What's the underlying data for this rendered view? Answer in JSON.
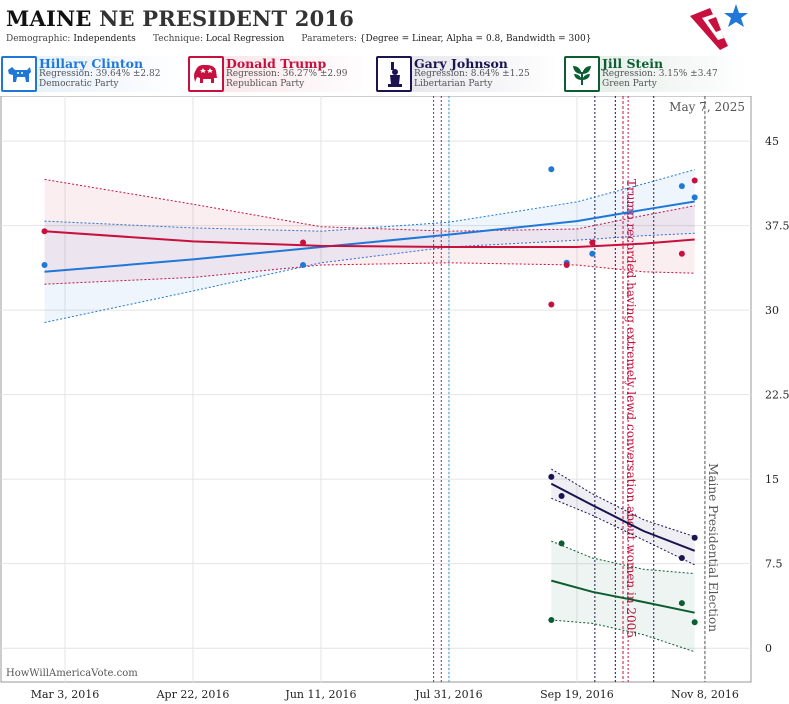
{
  "header": {
    "title_state": "MAINE",
    "title_rest": "NE PRESIDENT 2016",
    "demographic_label": "Demographic:",
    "demographic_value": "Independents",
    "technique_label": "Technique:",
    "technique_value": "Local Regression",
    "parameters_label": "Parameters:",
    "parameters_value": "{Degree = Linear, Alpha = 0.8, Bandwidth = 300}"
  },
  "candidates": [
    {
      "name": "Hillary Clinton",
      "regression": "Regression: 39.64% ±2.82",
      "party": "Democratic Party",
      "color": "#1f78d8",
      "icon": "donkey-icon"
    },
    {
      "name": "Donald Trump",
      "regression": "Regression: 36.27% ±2.99",
      "party": "Republican Party",
      "color": "#c8103e",
      "icon": "elephant-icon"
    },
    {
      "name": "Gary Johnson",
      "regression": "Regression: 8.64% ±1.25",
      "party": "Libertarian Party",
      "color": "#1a1450",
      "icon": "liberty-statue-icon"
    },
    {
      "name": "Jill Stein",
      "regression": "Regression: 3.15% ±3.47",
      "party": "Green Party",
      "color": "#0c5e32",
      "icon": "green-leaf-icon"
    }
  ],
  "footer": "HowWillAmericaVote.com",
  "chart_data": {
    "type": "line",
    "date_label": "May 7, 2025",
    "x_ticks": [
      "Mar 3, 2016",
      "Apr 22, 2016",
      "Jun 11, 2016",
      "Jul 31, 2016",
      "Sep 19, 2016",
      "Nov 8, 2016"
    ],
    "y_ticks": [
      0,
      7.5,
      15,
      22.5,
      30,
      37.5,
      45
    ],
    "ylim": [
      -3,
      49
    ],
    "xlim": [
      "2016-02-07",
      "2016-11-26"
    ],
    "annotations": [
      {
        "date": "2016-10-07",
        "text": "Trump recorded having extremely lewd conversation about women in 2005",
        "color": "#c8103e"
      },
      {
        "date": "2016-11-08",
        "text": "Maine Presidential Election",
        "color": "#555555"
      }
    ],
    "event_lines": [
      {
        "date": "2016-07-25",
        "color": "#c8103e"
      },
      {
        "date": "2016-07-28",
        "color": "#c8103e"
      },
      {
        "date": "2016-07-31",
        "color": "#2aa0c8"
      },
      {
        "date": "2016-09-26",
        "color": "#1a1450"
      },
      {
        "date": "2016-10-04",
        "color": "#1a1450"
      },
      {
        "date": "2016-10-09",
        "color": "#c8103e"
      },
      {
        "date": "2016-10-19",
        "color": "#1a1450"
      }
    ],
    "series": [
      {
        "name": "Hillary Clinton",
        "color": "#1f78d8",
        "points": [
          [
            "2016-02-24",
            34.0
          ],
          [
            "2016-06-04",
            34.0
          ],
          [
            "2016-09-09",
            42.5
          ],
          [
            "2016-09-15",
            34.2
          ],
          [
            "2016-09-25",
            35.0
          ],
          [
            "2016-10-30",
            41.0
          ],
          [
            "2016-11-04",
            40.0
          ]
        ],
        "fit": [
          [
            "2016-02-24",
            33.4
          ],
          [
            "2016-04-22",
            34.5
          ],
          [
            "2016-06-11",
            35.6
          ],
          [
            "2016-07-31",
            36.7
          ],
          [
            "2016-09-19",
            37.9
          ],
          [
            "2016-10-15",
            38.9
          ],
          [
            "2016-11-04",
            39.64
          ]
        ],
        "upper": [
          [
            "2016-02-24",
            37.9
          ],
          [
            "2016-04-22",
            37.3
          ],
          [
            "2016-06-11",
            37.0
          ],
          [
            "2016-07-31",
            37.8
          ],
          [
            "2016-09-19",
            39.6
          ],
          [
            "2016-10-15",
            41.2
          ],
          [
            "2016-11-04",
            42.46
          ]
        ],
        "lower": [
          [
            "2016-02-24",
            28.9
          ],
          [
            "2016-04-22",
            31.7
          ],
          [
            "2016-06-11",
            34.2
          ],
          [
            "2016-07-31",
            35.6
          ],
          [
            "2016-09-19",
            36.2
          ],
          [
            "2016-10-15",
            36.6
          ],
          [
            "2016-11-04",
            36.82
          ]
        ]
      },
      {
        "name": "Donald Trump",
        "color": "#c8103e",
        "points": [
          [
            "2016-02-24",
            37.0
          ],
          [
            "2016-06-04",
            36.0
          ],
          [
            "2016-09-09",
            30.5
          ],
          [
            "2016-09-15",
            34.0
          ],
          [
            "2016-09-25",
            36.0
          ],
          [
            "2016-10-30",
            35.0
          ],
          [
            "2016-11-04",
            41.5
          ]
        ],
        "fit": [
          [
            "2016-02-24",
            37.0
          ],
          [
            "2016-04-22",
            36.1
          ],
          [
            "2016-06-11",
            35.7
          ],
          [
            "2016-07-31",
            35.6
          ],
          [
            "2016-09-19",
            35.6
          ],
          [
            "2016-10-15",
            35.9
          ],
          [
            "2016-11-04",
            36.27
          ]
        ],
        "upper": [
          [
            "2016-02-24",
            41.6
          ],
          [
            "2016-04-22",
            39.4
          ],
          [
            "2016-06-11",
            37.4
          ],
          [
            "2016-07-31",
            37.0
          ],
          [
            "2016-09-19",
            37.2
          ],
          [
            "2016-10-15",
            38.4
          ],
          [
            "2016-11-04",
            39.26
          ]
        ],
        "lower": [
          [
            "2016-02-24",
            32.3
          ],
          [
            "2016-04-22",
            32.9
          ],
          [
            "2016-06-11",
            34.0
          ],
          [
            "2016-07-31",
            34.2
          ],
          [
            "2016-09-19",
            34.0
          ],
          [
            "2016-10-15",
            33.4
          ],
          [
            "2016-11-04",
            33.28
          ]
        ]
      },
      {
        "name": "Gary Johnson",
        "color": "#1a1450",
        "points": [
          [
            "2016-09-09",
            15.2
          ],
          [
            "2016-09-13",
            13.5
          ],
          [
            "2016-10-30",
            8.0
          ],
          [
            "2016-11-04",
            9.8
          ]
        ],
        "fit": [
          [
            "2016-09-09",
            14.6
          ],
          [
            "2016-09-25",
            12.7
          ],
          [
            "2016-10-15",
            10.4
          ],
          [
            "2016-11-04",
            8.64
          ]
        ],
        "upper": [
          [
            "2016-09-09",
            15.9
          ],
          [
            "2016-09-25",
            13.7
          ],
          [
            "2016-10-15",
            11.4
          ],
          [
            "2016-11-04",
            9.89
          ]
        ],
        "lower": [
          [
            "2016-09-09",
            13.3
          ],
          [
            "2016-09-25",
            11.8
          ],
          [
            "2016-10-15",
            9.6
          ],
          [
            "2016-11-04",
            7.39
          ]
        ]
      },
      {
        "name": "Jill Stein",
        "color": "#0c5e32",
        "points": [
          [
            "2016-09-09",
            2.5
          ],
          [
            "2016-09-13",
            9.3
          ],
          [
            "2016-10-30",
            4.0
          ],
          [
            "2016-11-04",
            2.3
          ]
        ],
        "fit": [
          [
            "2016-09-09",
            6.0
          ],
          [
            "2016-09-25",
            5.0
          ],
          [
            "2016-10-15",
            4.1
          ],
          [
            "2016-11-04",
            3.15
          ]
        ],
        "upper": [
          [
            "2016-09-09",
            9.5
          ],
          [
            "2016-09-25",
            8.0
          ],
          [
            "2016-10-15",
            7.0
          ],
          [
            "2016-11-04",
            6.62
          ]
        ],
        "lower": [
          [
            "2016-09-09",
            2.5
          ],
          [
            "2016-09-25",
            2.2
          ],
          [
            "2016-10-15",
            1.2
          ],
          [
            "2016-11-04",
            -0.32
          ]
        ]
      }
    ]
  }
}
